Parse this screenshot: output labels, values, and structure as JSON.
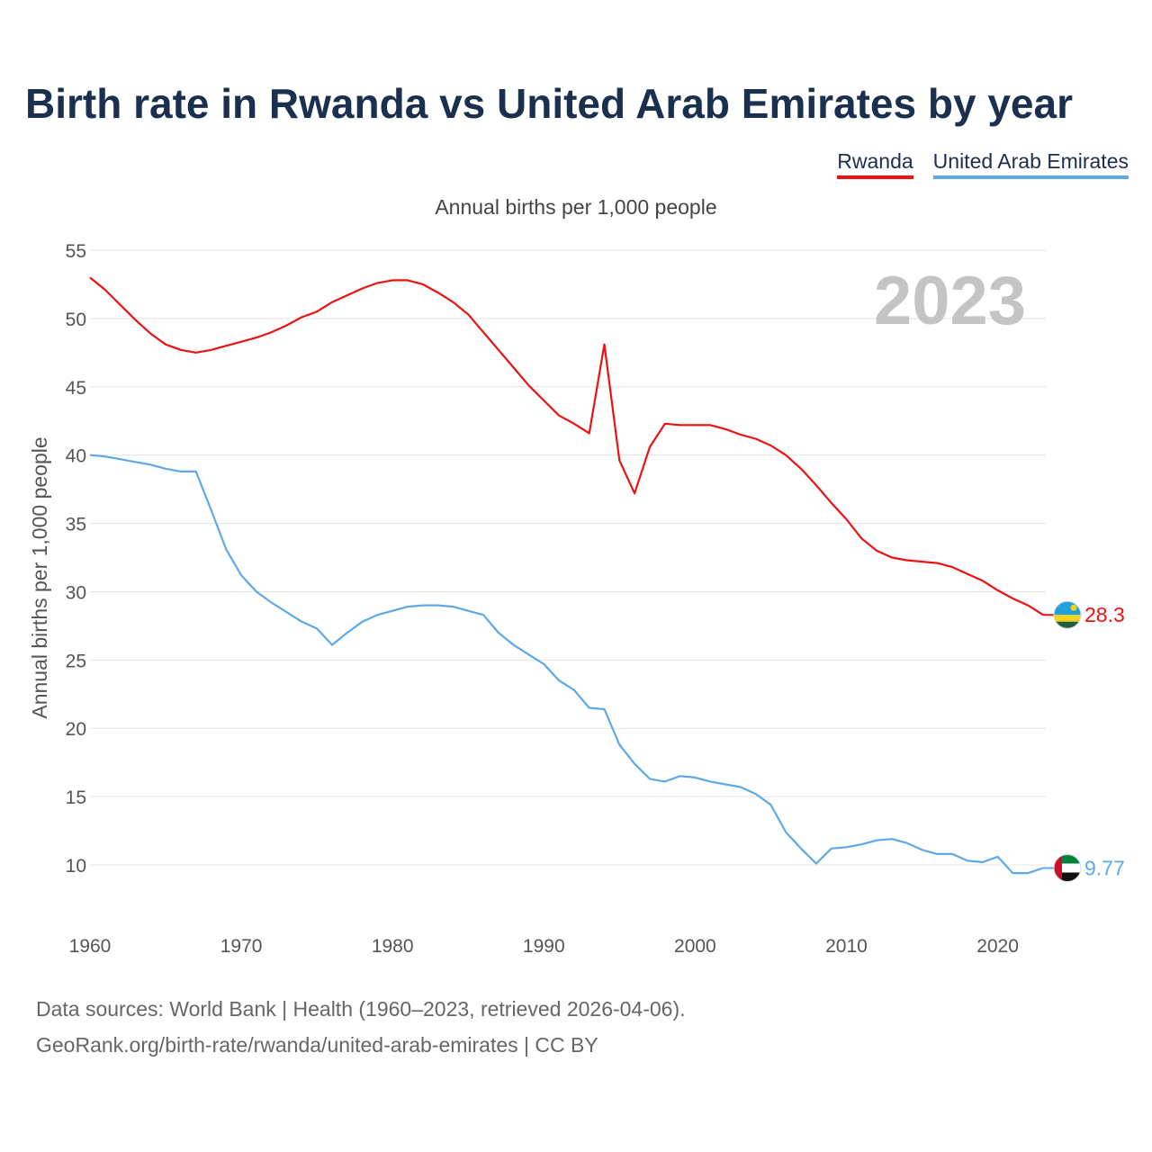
{
  "title": "Birth rate in Rwanda vs United Arab Emirates by year",
  "legend": [
    {
      "label": "Rwanda",
      "color": "#ee1111"
    },
    {
      "label": "United Arab Emirates",
      "color": "#5fa8e8"
    }
  ],
  "subtitle": "Annual births per 1,000 people",
  "year_badge": "2023",
  "footer": {
    "line1": "Data sources: World Bank | Health (1960–2023, retrieved 2026-04-06).",
    "line2": "GeoRank.org/birth-rate/rwanda/united-arab-emirates | CC BY"
  },
  "chart_data": {
    "type": "line",
    "title": "Birth rate in Rwanda vs United Arab Emirates by year",
    "xlabel": "",
    "ylabel": "Annual births per 1,000 people",
    "xlim": [
      1960,
      2023
    ],
    "ylim": [
      5,
      55
    ],
    "xticks": [
      "1960",
      "1970",
      "1980",
      "1990",
      "2000",
      "2010",
      "2020"
    ],
    "yticks": [
      "10",
      "15",
      "20",
      "25",
      "30",
      "35",
      "40",
      "45",
      "50",
      "55"
    ],
    "grid": true,
    "legend_position": "top-right",
    "x": [
      1960,
      1961,
      1962,
      1963,
      1964,
      1965,
      1966,
      1967,
      1968,
      1969,
      1970,
      1971,
      1972,
      1973,
      1974,
      1975,
      1976,
      1977,
      1978,
      1979,
      1980,
      1981,
      1982,
      1983,
      1984,
      1985,
      1986,
      1987,
      1988,
      1989,
      1990,
      1991,
      1992,
      1993,
      1994,
      1995,
      1996,
      1997,
      1998,
      1999,
      2000,
      2001,
      2002,
      2003,
      2004,
      2005,
      2006,
      2007,
      2008,
      2009,
      2010,
      2011,
      2012,
      2013,
      2014,
      2015,
      2016,
      2017,
      2018,
      2019,
      2020,
      2021,
      2022,
      2023
    ],
    "series": [
      {
        "name": "Rwanda",
        "color": "#ee1111",
        "end_label": "28.3",
        "flag": "rwanda-flag",
        "values": [
          53.0,
          52.1,
          51.0,
          49.9,
          48.9,
          48.1,
          47.7,
          47.5,
          47.7,
          48.0,
          48.3,
          48.6,
          49.0,
          49.5,
          50.1,
          50.5,
          51.2,
          51.7,
          52.2,
          52.6,
          52.8,
          52.8,
          52.5,
          51.9,
          51.2,
          50.3,
          49.0,
          47.7,
          46.4,
          45.1,
          44.0,
          42.9,
          42.3,
          41.6,
          48.1,
          39.6,
          37.2,
          40.6,
          42.3,
          42.2,
          42.2,
          42.2,
          41.9,
          41.5,
          41.2,
          40.7,
          40.0,
          39.0,
          37.8,
          36.5,
          35.3,
          33.9,
          33.0,
          32.5,
          32.3,
          32.2,
          32.1,
          31.8,
          31.3,
          30.8,
          30.1,
          29.5,
          29.0,
          28.3
        ]
      },
      {
        "name": "United Arab Emirates",
        "color": "#5fa8e8",
        "end_label": "9.77",
        "flag": "uae-flag",
        "values": [
          40.0,
          39.9,
          39.7,
          39.5,
          39.3,
          39.0,
          38.8,
          38.8,
          36.0,
          33.1,
          31.2,
          30.0,
          29.2,
          28.5,
          27.8,
          27.3,
          26.1,
          27.0,
          27.8,
          28.3,
          28.6,
          28.9,
          29.0,
          29.0,
          28.9,
          28.6,
          28.3,
          27.0,
          26.1,
          25.4,
          24.7,
          23.5,
          22.8,
          21.5,
          21.4,
          18.8,
          17.4,
          16.3,
          16.1,
          16.5,
          16.4,
          16.1,
          15.9,
          15.7,
          15.2,
          14.4,
          12.4,
          11.2,
          10.1,
          11.2,
          11.3,
          11.5,
          11.8,
          11.9,
          11.6,
          11.1,
          10.8,
          10.8,
          10.3,
          10.2,
          10.6,
          9.4,
          9.4,
          9.77
        ]
      }
    ]
  }
}
